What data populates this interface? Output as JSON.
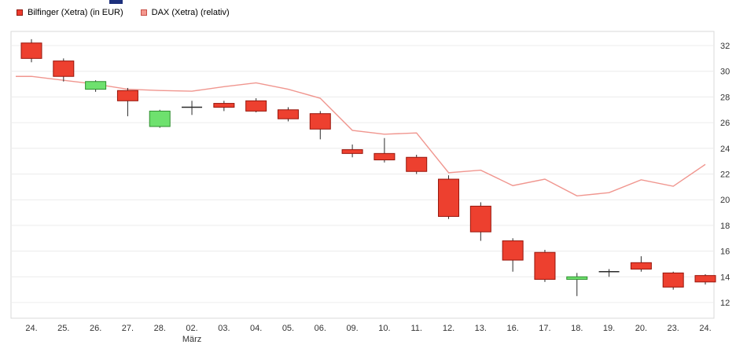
{
  "page": {
    "background": "#ffffff"
  },
  "artifact": {
    "color": "#1c2f7c"
  },
  "legend": [
    {
      "label": "Bilfinger (Xetra) (in EUR)",
      "swatch_fill": "#ee3b2d",
      "swatch_border": "#8f1a10"
    },
    {
      "label": "DAX (Xetra) (relativ)",
      "swatch_fill": "#f4978e",
      "swatch_border": "#c75048"
    }
  ],
  "chart_data": {
    "type": "candlestick",
    "title": "",
    "series": [
      {
        "name": "Bilfinger (Xetra) (in EUR)",
        "style": "candlestick"
      },
      {
        "name": "DAX (Xetra) (relativ)",
        "style": "line"
      }
    ],
    "x_axis": {
      "month_label": "März",
      "month_index": 5
    },
    "y_axis": {
      "side": "right",
      "ticks": [
        32,
        30,
        28,
        26,
        24,
        22,
        20,
        18,
        16,
        14,
        12
      ],
      "range_low": 11.2,
      "range_high": 33.1
    },
    "candles": [
      {
        "date": "24.",
        "open": 32.2,
        "high": 32.5,
        "low": 30.7,
        "close": 31.0
      },
      {
        "date": "25.",
        "open": 30.8,
        "high": 31.0,
        "low": 29.2,
        "close": 29.6
      },
      {
        "date": "26.",
        "open": 28.6,
        "high": 29.3,
        "low": 28.4,
        "close": 29.2
      },
      {
        "date": "27.",
        "open": 28.5,
        "high": 28.7,
        "low": 26.5,
        "close": 27.7
      },
      {
        "date": "28.",
        "open": 25.7,
        "high": 27.0,
        "low": 25.6,
        "close": 26.9
      },
      {
        "date": "02.",
        "open": 27.2,
        "high": 27.7,
        "low": 26.6,
        "close": 27.2
      },
      {
        "date": "03.",
        "open": 27.5,
        "high": 27.7,
        "low": 26.9,
        "close": 27.2
      },
      {
        "date": "04.",
        "open": 27.7,
        "high": 27.9,
        "low": 26.8,
        "close": 26.9
      },
      {
        "date": "05.",
        "open": 27.0,
        "high": 27.2,
        "low": 26.1,
        "close": 26.3
      },
      {
        "date": "06.",
        "open": 26.7,
        "high": 26.9,
        "low": 24.7,
        "close": 25.5
      },
      {
        "date": "09.",
        "open": 23.9,
        "high": 24.3,
        "low": 23.3,
        "close": 23.6
      },
      {
        "date": "10.",
        "open": 23.6,
        "high": 24.8,
        "low": 22.9,
        "close": 23.1
      },
      {
        "date": "11.",
        "open": 23.3,
        "high": 23.5,
        "low": 22.0,
        "close": 22.2
      },
      {
        "date": "12.",
        "open": 21.6,
        "high": 21.9,
        "low": 18.5,
        "close": 18.7
      },
      {
        "date": "13.",
        "open": 19.5,
        "high": 19.8,
        "low": 16.8,
        "close": 17.5
      },
      {
        "date": "16.",
        "open": 16.8,
        "high": 17.0,
        "low": 14.4,
        "close": 15.3
      },
      {
        "date": "17.",
        "open": 15.9,
        "high": 16.1,
        "low": 13.6,
        "close": 13.8
      },
      {
        "date": "18.",
        "open": 13.8,
        "high": 14.3,
        "low": 12.5,
        "close": 14.0
      },
      {
        "date": "19.",
        "open": 14.4,
        "high": 14.6,
        "low": 14.0,
        "close": 14.4
      },
      {
        "date": "20.",
        "open": 15.1,
        "high": 15.6,
        "low": 14.4,
        "close": 14.6
      },
      {
        "date": "23.",
        "open": 14.3,
        "high": 14.4,
        "low": 13.0,
        "close": 13.2
      },
      {
        "date": "24.",
        "open": 14.1,
        "high": 14.2,
        "low": 13.4,
        "close": 13.6
      }
    ],
    "dax_line": {
      "name": "DAX (Xetra) (relativ)",
      "color": "#f0968f",
      "values": [
        29.6,
        29.3,
        29.0,
        28.6,
        28.5,
        28.45,
        28.8,
        29.1,
        28.6,
        27.9,
        25.4,
        25.1,
        25.2,
        22.1,
        22.3,
        21.1,
        21.6,
        20.3,
        20.55,
        21.55,
        21.05,
        22.75
      ]
    },
    "colors": {
      "up_fill": "#6ee16e",
      "up_border": "#2f8f2f",
      "down_fill": "#ed402f",
      "down_border": "#98150b",
      "wick": "#2b2b2b",
      "grid": "#ececec",
      "frame": "#d8d8d8",
      "axis_text": "#333333"
    }
  }
}
